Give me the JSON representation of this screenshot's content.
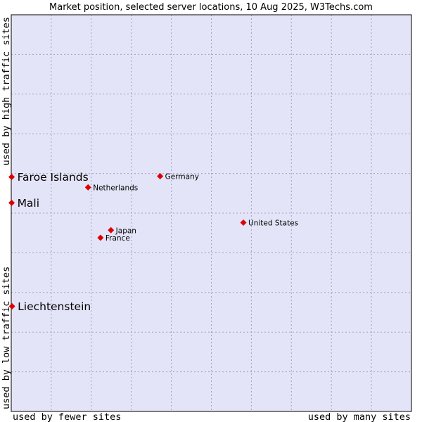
{
  "chart_data": {
    "type": "scatter",
    "title": "Market position, selected server locations, 10 Aug 2025, W3Techs.com",
    "xlabel_left": "used by fewer sites",
    "xlabel_right": "used by many sites",
    "ylabel_bottom": "used by low traffic sites",
    "ylabel_top": "used by high traffic sites",
    "xlim": [
      0,
      100
    ],
    "ylim": [
      0,
      100
    ],
    "grid": true,
    "colors": {
      "plot_bg": "#e4e4f8",
      "grid": "#a0a0c0",
      "marker": "#dd0000",
      "border": "#000000"
    },
    "points": [
      {
        "label": "Faroe Islands",
        "x": 0.1,
        "y": 59.1,
        "emphasis": true
      },
      {
        "label": "Mali",
        "x": 0.1,
        "y": 52.6,
        "emphasis": true
      },
      {
        "label": "Liechtenstein",
        "x": 0.2,
        "y": 26.5,
        "emphasis": true
      },
      {
        "label": "Germany",
        "x": 37.2,
        "y": 59.3,
        "emphasis": false
      },
      {
        "label": "Netherlands",
        "x": 19.2,
        "y": 56.5,
        "emphasis": false
      },
      {
        "label": "United States",
        "x": 58.0,
        "y": 47.6,
        "emphasis": false
      },
      {
        "label": "Japan",
        "x": 24.9,
        "y": 45.7,
        "emphasis": false
      },
      {
        "label": "France",
        "x": 22.3,
        "y": 43.8,
        "emphasis": false
      }
    ]
  }
}
